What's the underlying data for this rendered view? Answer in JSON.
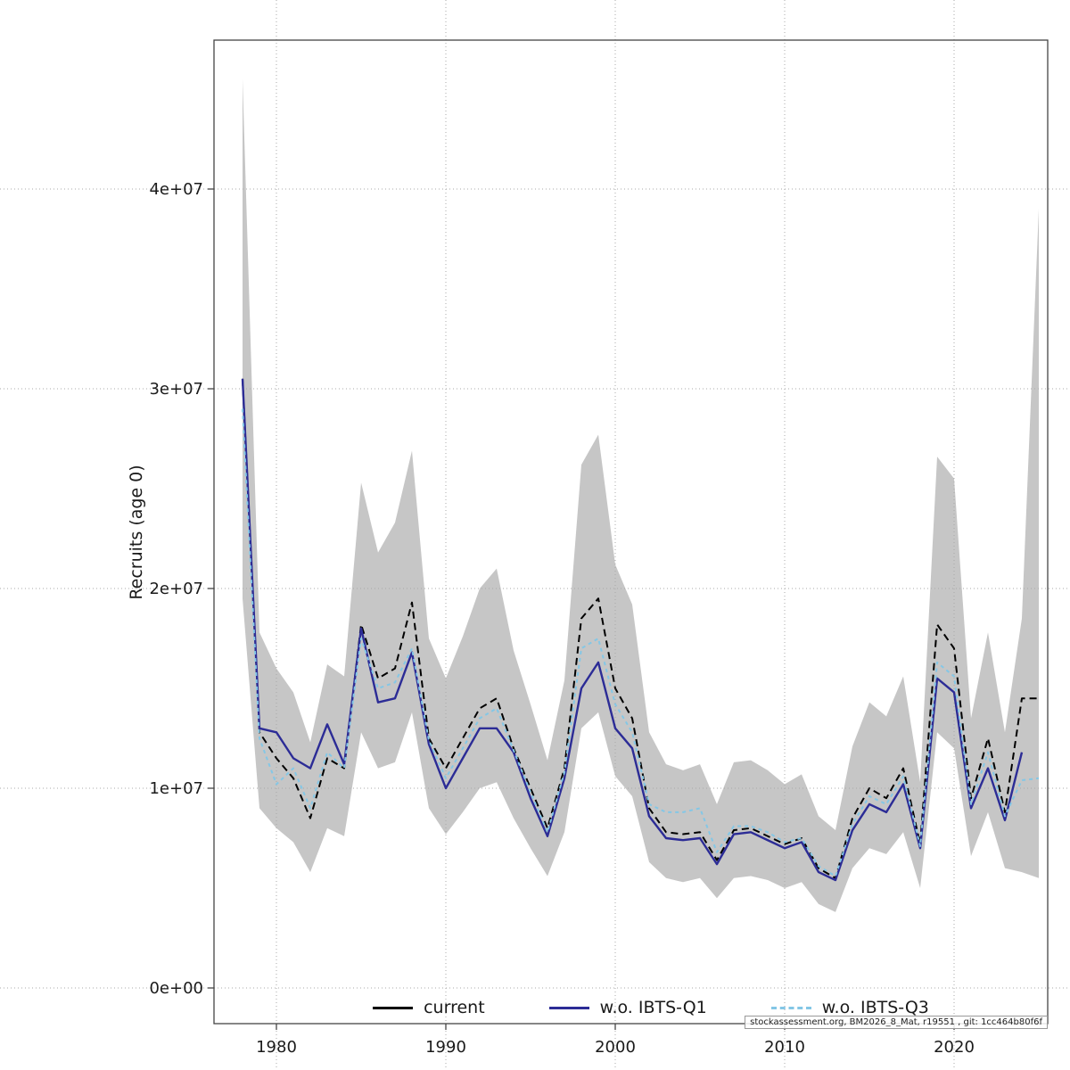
{
  "figure": {
    "watermark": "stockassessment.org, BM2026_8_Mat, r19551 , git: 1cc464b80f6f"
  },
  "chart_data": {
    "type": "line",
    "title": "",
    "xlabel": "",
    "ylabel": "Recruits (age 0)",
    "values_unit": "millions of recruits (1e6)",
    "x_unit": "year",
    "grid": true,
    "legend_position": "bottom",
    "xlim": [
      1976,
      2026
    ],
    "ylim": [
      0,
      47500000
    ],
    "x_ticks": [
      1980,
      1990,
      2000,
      2010,
      2020
    ],
    "y_ticks": [
      {
        "value": 0,
        "label": "0e+00"
      },
      {
        "value": 10,
        "label": "1e+07"
      },
      {
        "value": 20,
        "label": "2e+07"
      },
      {
        "value": 30,
        "label": "3e+07"
      },
      {
        "value": 40,
        "label": "4e+07"
      }
    ],
    "x": [
      1978,
      1979,
      1980,
      1981,
      1982,
      1983,
      1984,
      1985,
      1986,
      1987,
      1988,
      1989,
      1990,
      1991,
      1992,
      1993,
      1994,
      1995,
      1996,
      1997,
      1998,
      1999,
      2000,
      2001,
      2002,
      2003,
      2004,
      2005,
      2006,
      2007,
      2008,
      2009,
      2010,
      2011,
      2012,
      2013,
      2014,
      2015,
      2016,
      2017,
      2018,
      2019,
      2020,
      2021,
      2022,
      2023,
      2024,
      2025
    ],
    "series": [
      {
        "name": "current",
        "color": "#000000",
        "style": "dashed",
        "values": [
          30.5,
          12.8,
          11.5,
          10.5,
          8.5,
          11.5,
          11.0,
          18.2,
          15.5,
          16.0,
          19.3,
          12.5,
          11.0,
          12.5,
          14.0,
          14.5,
          12.0,
          10.0,
          8.0,
          11.0,
          18.5,
          19.5,
          15.0,
          13.5,
          9.0,
          7.8,
          7.7,
          7.8,
          6.4,
          7.9,
          8.0,
          7.6,
          7.2,
          7.5,
          6.0,
          5.5,
          8.5,
          10.0,
          9.5,
          11.0,
          7.2,
          18.2,
          17.0,
          9.5,
          12.5,
          8.8,
          14.5,
          14.5
        ]
      },
      {
        "name": "w.o. IBTS-Q1",
        "color": "#2c2c96",
        "style": "solid",
        "values": [
          30.5,
          13.0,
          12.8,
          11.5,
          11.0,
          13.2,
          11.2,
          18.0,
          14.3,
          14.5,
          16.8,
          12.2,
          10.0,
          11.5,
          13.0,
          13.0,
          11.8,
          9.5,
          7.6,
          10.5,
          15.0,
          16.3,
          13.0,
          12.0,
          8.6,
          7.5,
          7.4,
          7.5,
          6.2,
          7.7,
          7.8,
          7.4,
          7.0,
          7.3,
          5.8,
          5.4,
          7.9,
          9.2,
          8.8,
          10.2,
          7.0,
          15.5,
          14.8,
          9.0,
          11.0,
          8.4,
          11.8,
          null
        ]
      },
      {
        "name": "w.o. IBTS-Q3",
        "color": "#84c7e6",
        "style": "dashed",
        "values": [
          29.0,
          12.5,
          10.2,
          11.0,
          9.0,
          11.8,
          11.0,
          17.5,
          15.0,
          15.3,
          17.0,
          12.4,
          10.5,
          12.0,
          13.5,
          14.0,
          11.9,
          9.8,
          7.8,
          10.8,
          17.0,
          17.5,
          14.2,
          12.8,
          9.2,
          8.8,
          8.8,
          9.0,
          6.8,
          8.1,
          8.1,
          7.8,
          7.3,
          7.5,
          6.1,
          5.6,
          8.2,
          9.6,
          9.2,
          10.6,
          7.1,
          16.3,
          15.6,
          9.2,
          11.8,
          8.6,
          10.4,
          10.5
        ]
      }
    ],
    "confidence_band": {
      "color": "#c6c6c6",
      "lower": [
        19.5,
        9.0,
        8.0,
        7.3,
        5.8,
        8.0,
        7.6,
        12.8,
        11.0,
        11.3,
        13.8,
        9.0,
        7.7,
        8.8,
        10.0,
        10.3,
        8.5,
        7.0,
        5.6,
        7.8,
        13.0,
        13.8,
        10.6,
        9.6,
        6.3,
        5.5,
        5.3,
        5.5,
        4.5,
        5.5,
        5.6,
        5.4,
        5.0,
        5.3,
        4.2,
        3.8,
        6.0,
        7.0,
        6.7,
        7.8,
        5.0,
        12.8,
        12.0,
        6.6,
        8.8,
        6.0,
        5.8,
        5.5
      ],
      "upper": [
        45.5,
        17.8,
        16.0,
        14.8,
        12.3,
        16.2,
        15.6,
        25.3,
        21.8,
        23.3,
        26.9,
        17.5,
        15.5,
        17.6,
        20.0,
        21.0,
        16.9,
        14.2,
        11.4,
        15.4,
        26.2,
        27.7,
        21.2,
        19.2,
        12.8,
        11.2,
        10.9,
        11.2,
        9.2,
        11.3,
        11.4,
        10.9,
        10.2,
        10.7,
        8.6,
        7.9,
        12.1,
        14.3,
        13.6,
        15.6,
        10.3,
        26.6,
        25.5,
        13.5,
        17.8,
        12.8,
        18.5,
        39.0
      ]
    }
  }
}
